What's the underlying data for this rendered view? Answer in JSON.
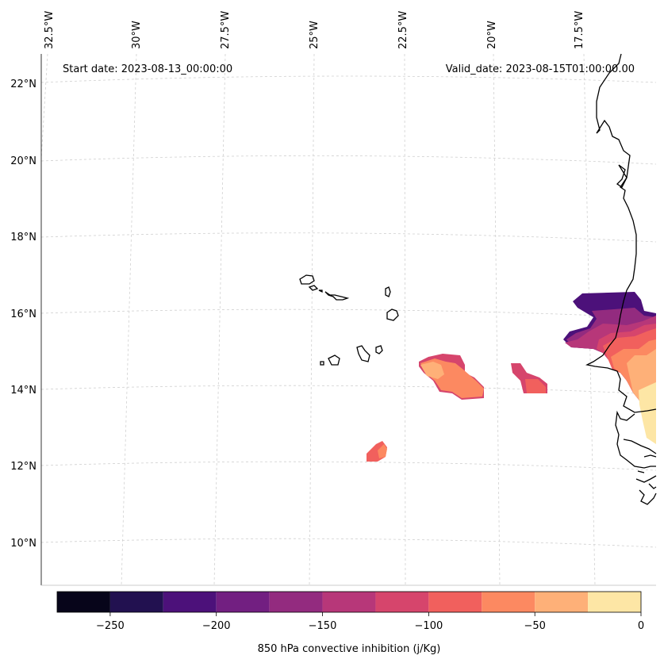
{
  "header": {
    "start_date": "Start date: 2023-08-13_00:00:00",
    "valid_date": "Valid_date: 2023-08-15T01:00:00.00"
  },
  "map": {
    "lon_labels": [
      "32.5°W",
      "30°W",
      "27.5°W",
      "25°W",
      "22.5°W",
      "20°W",
      "17.5°W"
    ],
    "lat_labels": [
      "22°N",
      "20°N",
      "18°N",
      "16°N",
      "14°N",
      "12°N",
      "10°N"
    ],
    "field": "850 hPa convective inhibition",
    "features": [
      "cape-verde-islands",
      "west-africa-coastline",
      "cin-contours"
    ]
  },
  "colorbar": {
    "label": "850 hPa convective inhibition (j/Kg)",
    "tick_labels": [
      "−250",
      "−200",
      "−150",
      "−100",
      "−50",
      "0"
    ],
    "levels": [
      -275,
      -250,
      -225,
      -200,
      -175,
      -150,
      -125,
      -100,
      -75,
      -50,
      -25,
      0
    ],
    "colors": [
      "#07051a",
      "#221150",
      "#4c117a",
      "#721f81",
      "#932b7f",
      "#b73779",
      "#d6456c",
      "#f1605d",
      "#fc8961",
      "#feb078",
      "#fde6a5"
    ]
  }
}
